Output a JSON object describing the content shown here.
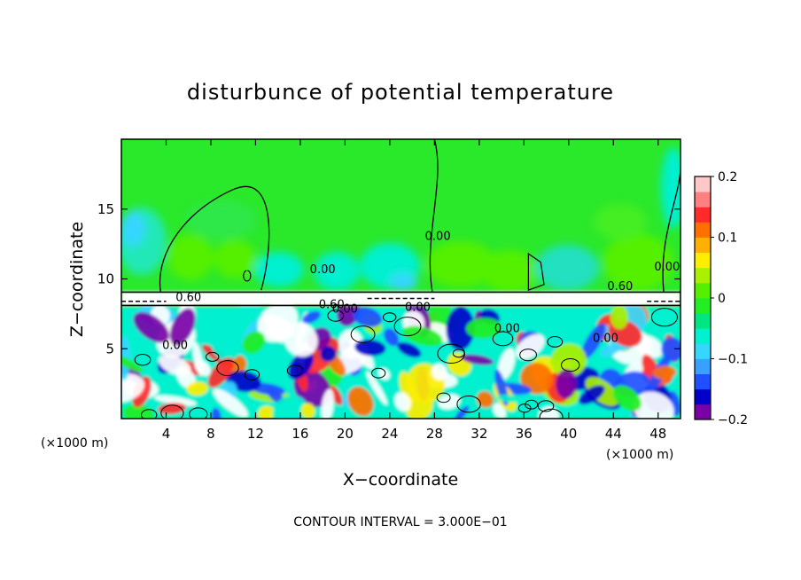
{
  "chart_data": {
    "type": "heatmap",
    "title": "disturbunce of potential temperature",
    "xlabel": "X−coordinate",
    "ylabel": "Z−coordinate",
    "x_unit_left": "(×1000 m)",
    "x_unit_right": "(×1000 m)",
    "footer": "CONTOUR INTERVAL = 3.000E−01",
    "xlim": [
      0,
      50
    ],
    "ylim": [
      0,
      20
    ],
    "x_ticks": [
      4,
      8,
      12,
      16,
      20,
      24,
      28,
      32,
      36,
      40,
      44,
      48
    ],
    "y_ticks": [
      5,
      10,
      15
    ],
    "colorbar": {
      "range": [
        -0.2,
        0.2
      ],
      "tick_values": [
        0.2,
        0.1,
        0,
        -0.1,
        -0.2
      ],
      "tick_labels": [
        "0.2",
        "0.1",
        "0",
        "−0.1",
        "−0.2"
      ],
      "colors": [
        "#7a00a8",
        "#0000c8",
        "#1f4fff",
        "#38a0ff",
        "#36d6ff",
        "#00f0d0",
        "#00e680",
        "#22ee22",
        "#55f000",
        "#aaf000",
        "#ffee00",
        "#ffb000",
        "#ff7000",
        "#ff2a2a",
        "#ff8080",
        "#ffc8c8"
      ]
    },
    "contour_labels": [
      {
        "text": "0.00",
        "x": 4.8,
        "y": 5.0
      },
      {
        "text": "0.60",
        "x": 6.0,
        "y": 8.4
      },
      {
        "text": "0.60",
        "x": 18.8,
        "y": 7.9
      },
      {
        "text": "0.00",
        "x": 18.0,
        "y": 10.4
      },
      {
        "text": "0.00",
        "x": 20.0,
        "y": 7.6
      },
      {
        "text": "0.00",
        "x": 26.5,
        "y": 7.7
      },
      {
        "text": "0.00",
        "x": 28.3,
        "y": 12.8
      },
      {
        "text": "0.00",
        "x": 34.5,
        "y": 6.2
      },
      {
        "text": "0.00",
        "x": 43.3,
        "y": 5.5
      },
      {
        "text": "0.60",
        "x": 44.6,
        "y": 9.2
      },
      {
        "text": "0.00",
        "x": 48.8,
        "y": 10.6
      }
    ]
  }
}
